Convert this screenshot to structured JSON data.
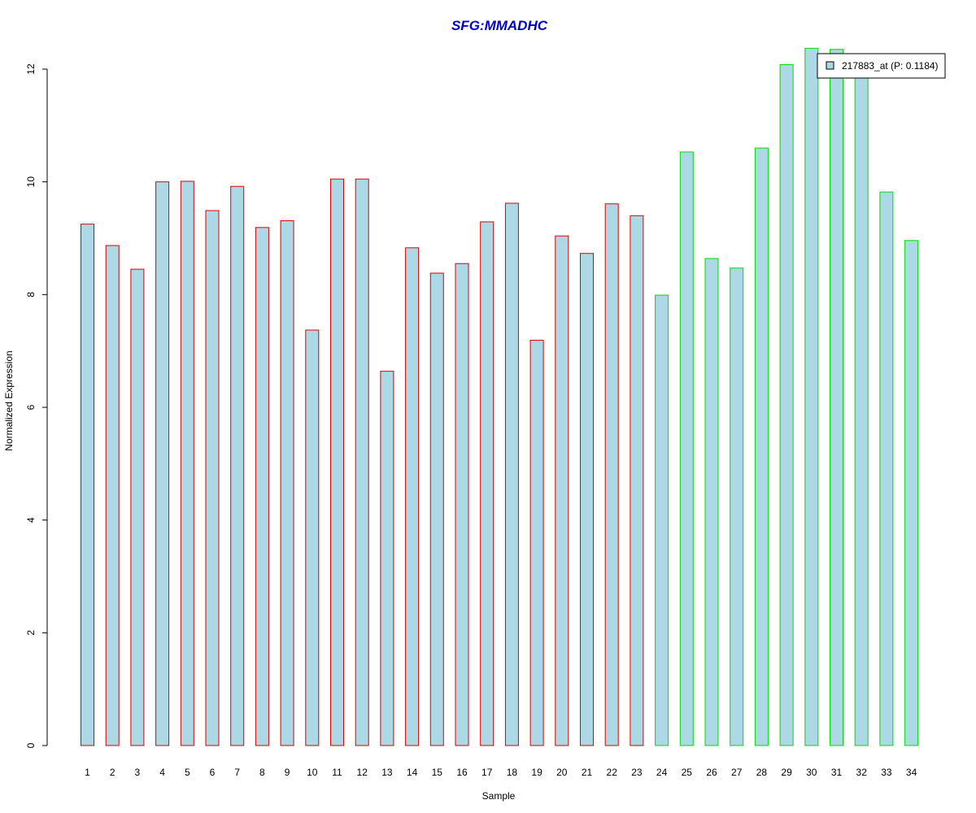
{
  "chart_data": {
    "type": "bar",
    "title": "SFG:MMADHC",
    "xlabel": "Sample",
    "ylabel": "Normalized Expression",
    "ylim": [
      0,
      12.4
    ],
    "yticks": [
      0,
      2,
      4,
      6,
      8,
      10,
      12
    ],
    "categories": [
      "1",
      "2",
      "3",
      "4",
      "5",
      "6",
      "7",
      "8",
      "9",
      "10",
      "11",
      "12",
      "13",
      "14",
      "15",
      "16",
      "17",
      "18",
      "19",
      "20",
      "21",
      "22",
      "23",
      "24",
      "25",
      "26",
      "27",
      "28",
      "29",
      "30",
      "31",
      "32",
      "33",
      "34"
    ],
    "values": [
      9.25,
      8.87,
      8.45,
      10.0,
      10.01,
      9.49,
      9.92,
      9.19,
      9.31,
      7.37,
      10.05,
      10.05,
      6.64,
      8.83,
      8.38,
      8.55,
      9.29,
      9.62,
      7.19,
      9.04,
      8.73,
      9.61,
      9.4,
      7.99,
      10.53,
      8.64,
      8.47,
      10.6,
      12.08,
      12.37,
      12.35,
      12.0,
      9.82,
      8.96
    ],
    "groups": [
      {
        "range": [
          1,
          23
        ],
        "border_color": "#dd0000"
      },
      {
        "range": [
          24,
          34
        ],
        "border_color": "#00dd00"
      }
    ],
    "bar_fill": "#add8e6",
    "title_color": "#0000cc",
    "grid": false,
    "legend": {
      "placement": "top-right",
      "entries": [
        {
          "label": "217883_at (P: 0.1184)",
          "swatch_color": "#add8e6"
        }
      ]
    }
  }
}
